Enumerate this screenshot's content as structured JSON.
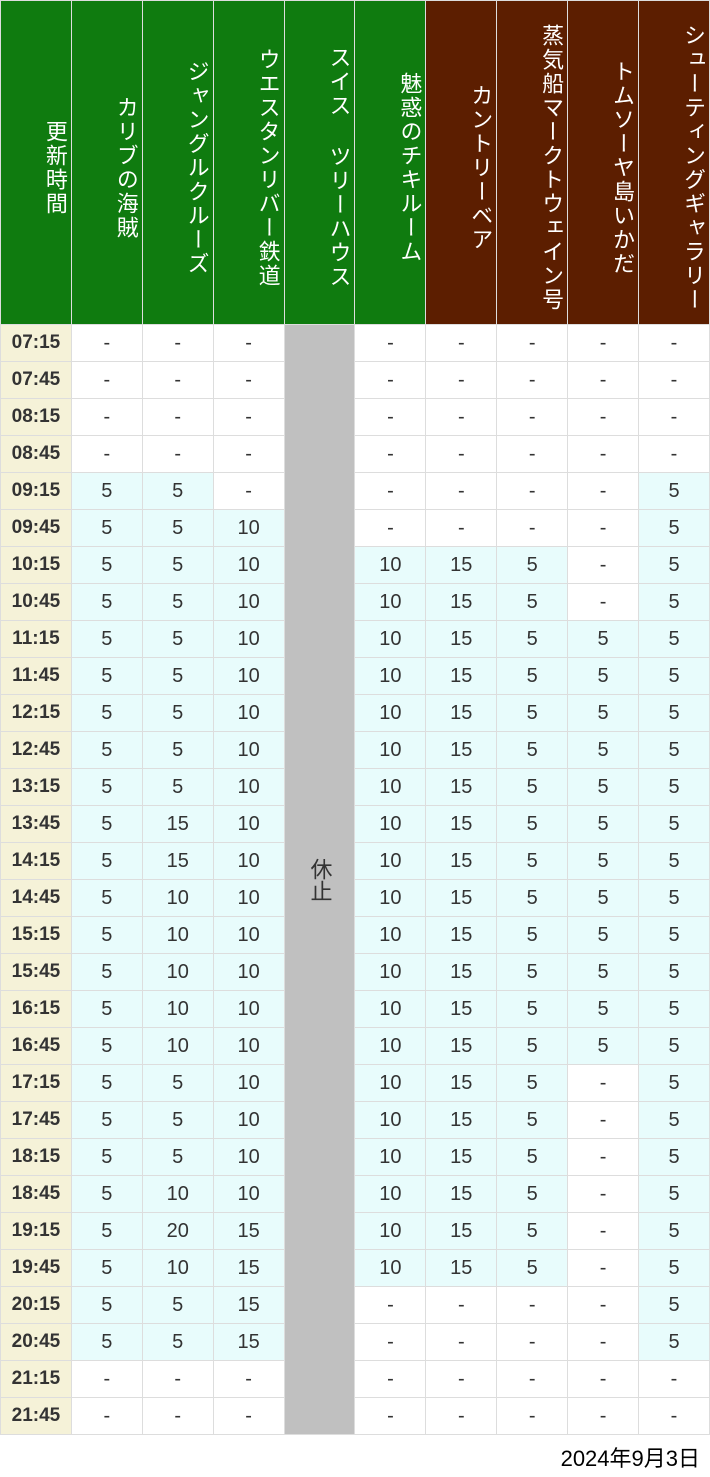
{
  "colors": {
    "header_time_bg": "#0f7b0f",
    "header_green_bg": "#0f7b0f",
    "header_brown_bg": "#5c1e00",
    "time_col_bg": "#f5f2d8",
    "cell_tint": "#e8fcfc",
    "cell_white": "#ffffff",
    "closed_bg": "#c0c0c0",
    "border": "#dddddd",
    "header_text": "#ffffff",
    "body_text": "#333333"
  },
  "headers": [
    {
      "label": "更新時間",
      "bg": "green"
    },
    {
      "label": "カリブの海賊",
      "bg": "green"
    },
    {
      "label": "ジャングルクルーズ",
      "bg": "green"
    },
    {
      "label": "ウエスタンリバー鉄道",
      "bg": "green"
    },
    {
      "label": "スイス ツリーハウス",
      "bg": "green"
    },
    {
      "label": "魅惑のチキルーム",
      "bg": "green"
    },
    {
      "label": "カントリーベア",
      "bg": "brown"
    },
    {
      "label": "蒸気船マークトウェイン号",
      "bg": "brown"
    },
    {
      "label": "トムソーヤ島いかだ",
      "bg": "brown"
    },
    {
      "label": "シューティングギャラリー",
      "bg": "brown"
    }
  ],
  "closed_label": "休止",
  "closed_column_index": 4,
  "times": [
    "07:15",
    "07:45",
    "08:15",
    "08:45",
    "09:15",
    "09:45",
    "10:15",
    "10:45",
    "11:15",
    "11:45",
    "12:15",
    "12:45",
    "13:15",
    "13:45",
    "14:15",
    "14:45",
    "15:15",
    "15:45",
    "16:15",
    "16:45",
    "17:15",
    "17:45",
    "18:15",
    "18:45",
    "19:15",
    "19:45",
    "20:15",
    "20:45",
    "21:15",
    "21:45"
  ],
  "rows": [
    [
      "-",
      "-",
      "-",
      null,
      "-",
      "-",
      "-",
      "-",
      "-"
    ],
    [
      "-",
      "-",
      "-",
      null,
      "-",
      "-",
      "-",
      "-",
      "-"
    ],
    [
      "-",
      "-",
      "-",
      null,
      "-",
      "-",
      "-",
      "-",
      "-"
    ],
    [
      "-",
      "-",
      "-",
      null,
      "-",
      "-",
      "-",
      "-",
      "-"
    ],
    [
      "5",
      "5",
      "-",
      null,
      "-",
      "-",
      "-",
      "-",
      "5"
    ],
    [
      "5",
      "5",
      "10",
      null,
      "-",
      "-",
      "-",
      "-",
      "5"
    ],
    [
      "5",
      "5",
      "10",
      null,
      "10",
      "15",
      "5",
      "-",
      "5"
    ],
    [
      "5",
      "5",
      "10",
      null,
      "10",
      "15",
      "5",
      "-",
      "5"
    ],
    [
      "5",
      "5",
      "10",
      null,
      "10",
      "15",
      "5",
      "5",
      "5"
    ],
    [
      "5",
      "5",
      "10",
      null,
      "10",
      "15",
      "5",
      "5",
      "5"
    ],
    [
      "5",
      "5",
      "10",
      null,
      "10",
      "15",
      "5",
      "5",
      "5"
    ],
    [
      "5",
      "5",
      "10",
      null,
      "10",
      "15",
      "5",
      "5",
      "5"
    ],
    [
      "5",
      "5",
      "10",
      null,
      "10",
      "15",
      "5",
      "5",
      "5"
    ],
    [
      "5",
      "15",
      "10",
      null,
      "10",
      "15",
      "5",
      "5",
      "5"
    ],
    [
      "5",
      "15",
      "10",
      null,
      "10",
      "15",
      "5",
      "5",
      "5"
    ],
    [
      "5",
      "10",
      "10",
      null,
      "10",
      "15",
      "5",
      "5",
      "5"
    ],
    [
      "5",
      "10",
      "10",
      null,
      "10",
      "15",
      "5",
      "5",
      "5"
    ],
    [
      "5",
      "10",
      "10",
      null,
      "10",
      "15",
      "5",
      "5",
      "5"
    ],
    [
      "5",
      "10",
      "10",
      null,
      "10",
      "15",
      "5",
      "5",
      "5"
    ],
    [
      "5",
      "10",
      "10",
      null,
      "10",
      "15",
      "5",
      "5",
      "5"
    ],
    [
      "5",
      "5",
      "10",
      null,
      "10",
      "15",
      "5",
      "-",
      "5"
    ],
    [
      "5",
      "5",
      "10",
      null,
      "10",
      "15",
      "5",
      "-",
      "5"
    ],
    [
      "5",
      "5",
      "10",
      null,
      "10",
      "15",
      "5",
      "-",
      "5"
    ],
    [
      "5",
      "10",
      "10",
      null,
      "10",
      "15",
      "5",
      "-",
      "5"
    ],
    [
      "5",
      "20",
      "15",
      null,
      "10",
      "15",
      "5",
      "-",
      "5"
    ],
    [
      "5",
      "10",
      "15",
      null,
      "10",
      "15",
      "5",
      "-",
      "5"
    ],
    [
      "5",
      "5",
      "15",
      null,
      "-",
      "-",
      "-",
      "-",
      "5"
    ],
    [
      "5",
      "5",
      "15",
      null,
      "-",
      "-",
      "-",
      "-",
      "5"
    ],
    [
      "-",
      "-",
      "-",
      null,
      "-",
      "-",
      "-",
      "-",
      "-"
    ],
    [
      "-",
      "-",
      "-",
      null,
      "-",
      "-",
      "-",
      "-",
      "-"
    ]
  ],
  "footer_date": "2024年9月3日"
}
